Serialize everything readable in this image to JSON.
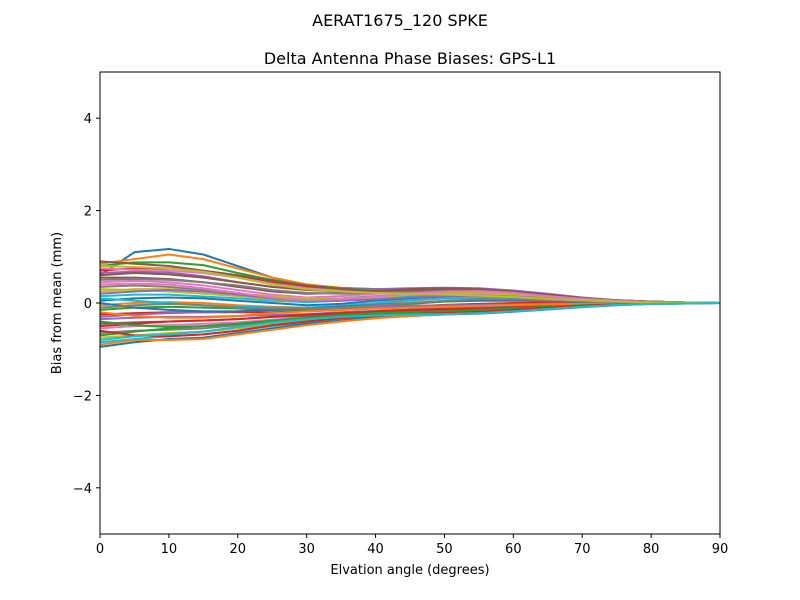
{
  "chart_data": {
    "type": "line",
    "suptitle": "AERAT1675_120   SPKE",
    "title": "Delta Antenna Phase Biases: GPS-L1",
    "xlabel": "Elvation angle (degrees)",
    "ylabel": "Bias from mean (mm)",
    "xlim": [
      0,
      90
    ],
    "ylim": [
      -5,
      5
    ],
    "xticks": [
      0,
      10,
      20,
      30,
      40,
      50,
      60,
      70,
      80,
      90
    ],
    "yticks": [
      -4,
      -2,
      0,
      2,
      4
    ],
    "ytick_labels": [
      "−4",
      "−2",
      "0",
      "2",
      "4"
    ],
    "grid": false,
    "legend": "none",
    "x": [
      0,
      5,
      10,
      15,
      20,
      25,
      30,
      35,
      40,
      45,
      50,
      55,
      60,
      65,
      70,
      75,
      80,
      85,
      90
    ],
    "colors": [
      "#1f77b4",
      "#ff7f0e",
      "#2ca02c",
      "#d62728",
      "#9467bd",
      "#8c564b",
      "#e377c2",
      "#7f7f7f",
      "#bcbd22",
      "#17becf"
    ],
    "series": [
      {
        "values": [
          0.6,
          1.1,
          1.17,
          1.05,
          0.8,
          0.55,
          0.4,
          0.32,
          0.3,
          0.28,
          0.25,
          0.22,
          0.2,
          0.15,
          0.1,
          0.06,
          0.03,
          0.01,
          0.0
        ]
      },
      {
        "values": [
          0.85,
          0.95,
          1.05,
          0.95,
          0.75,
          0.55,
          0.4,
          0.33,
          0.3,
          0.27,
          0.25,
          0.23,
          0.2,
          0.15,
          0.1,
          0.06,
          0.03,
          0.01,
          0.0
        ]
      },
      {
        "values": [
          0.8,
          0.88,
          0.88,
          0.82,
          0.65,
          0.5,
          0.38,
          0.32,
          0.3,
          0.28,
          0.26,
          0.24,
          0.2,
          0.15,
          0.1,
          0.06,
          0.03,
          0.01,
          0.0
        ]
      },
      {
        "values": [
          0.7,
          0.75,
          0.75,
          0.7,
          0.58,
          0.45,
          0.35,
          0.3,
          0.28,
          0.27,
          0.25,
          0.22,
          0.19,
          0.14,
          0.09,
          0.05,
          0.03,
          0.01,
          0.0
        ]
      },
      {
        "values": [
          0.65,
          0.68,
          0.66,
          0.58,
          0.45,
          0.35,
          0.3,
          0.28,
          0.3,
          0.32,
          0.33,
          0.32,
          0.27,
          0.2,
          0.12,
          0.06,
          0.03,
          0.01,
          0.0
        ]
      },
      {
        "values": [
          0.55,
          0.55,
          0.52,
          0.45,
          0.35,
          0.25,
          0.2,
          0.22,
          0.26,
          0.3,
          0.32,
          0.3,
          0.25,
          0.18,
          0.11,
          0.06,
          0.03,
          0.01,
          0.0
        ]
      },
      {
        "values": [
          0.45,
          0.48,
          0.45,
          0.38,
          0.28,
          0.18,
          0.12,
          0.15,
          0.2,
          0.25,
          0.28,
          0.27,
          0.22,
          0.16,
          0.1,
          0.05,
          0.02,
          0.01,
          0.0
        ]
      },
      {
        "values": [
          0.35,
          0.38,
          0.35,
          0.28,
          0.2,
          0.12,
          0.08,
          0.1,
          0.15,
          0.2,
          0.24,
          0.24,
          0.2,
          0.14,
          0.09,
          0.05,
          0.02,
          0.01,
          0.0
        ]
      },
      {
        "values": [
          0.25,
          0.3,
          0.3,
          0.25,
          0.2,
          0.15,
          0.1,
          0.1,
          0.12,
          0.15,
          0.18,
          0.18,
          0.15,
          0.11,
          0.07,
          0.04,
          0.02,
          0.01,
          0.0
        ]
      },
      {
        "values": [
          0.15,
          0.18,
          0.18,
          0.14,
          0.1,
          0.05,
          0.02,
          0.05,
          0.1,
          0.15,
          0.18,
          0.18,
          0.15,
          0.1,
          0.06,
          0.03,
          0.02,
          0.01,
          0.0
        ]
      },
      {
        "values": [
          0.05,
          0.1,
          0.12,
          0.1,
          0.05,
          0.0,
          -0.05,
          -0.02,
          0.05,
          0.1,
          0.14,
          0.15,
          0.12,
          0.09,
          0.06,
          0.03,
          0.01,
          0.0,
          0.0
        ]
      },
      {
        "values": [
          -0.05,
          0.0,
          0.02,
          0.0,
          -0.05,
          -0.08,
          -0.1,
          -0.08,
          -0.02,
          0.05,
          0.1,
          0.12,
          0.1,
          0.07,
          0.04,
          0.02,
          0.01,
          0.0,
          0.0
        ]
      },
      {
        "values": [
          -0.15,
          -0.1,
          -0.08,
          -0.1,
          -0.12,
          -0.15,
          -0.15,
          -0.12,
          -0.08,
          -0.02,
          0.03,
          0.05,
          0.05,
          0.04,
          0.02,
          0.01,
          0.0,
          0.0,
          0.0
        ]
      },
      {
        "values": [
          -0.25,
          -0.22,
          -0.2,
          -0.2,
          -0.2,
          -0.2,
          -0.18,
          -0.15,
          -0.12,
          -0.08,
          -0.04,
          -0.02,
          0.0,
          0.0,
          0.0,
          0.0,
          0.0,
          0.0,
          0.0
        ]
      },
      {
        "values": [
          -0.35,
          -0.32,
          -0.3,
          -0.3,
          -0.28,
          -0.26,
          -0.24,
          -0.2,
          -0.17,
          -0.14,
          -0.1,
          -0.08,
          -0.05,
          -0.03,
          -0.02,
          -0.01,
          0.0,
          0.0,
          0.0
        ]
      },
      {
        "values": [
          -0.45,
          -0.42,
          -0.4,
          -0.38,
          -0.35,
          -0.3,
          -0.28,
          -0.25,
          -0.22,
          -0.18,
          -0.15,
          -0.12,
          -0.09,
          -0.06,
          -0.04,
          -0.02,
          -0.01,
          0.0,
          0.0
        ]
      },
      {
        "values": [
          -0.55,
          -0.5,
          -0.48,
          -0.45,
          -0.42,
          -0.36,
          -0.32,
          -0.28,
          -0.25,
          -0.22,
          -0.2,
          -0.17,
          -0.13,
          -0.09,
          -0.05,
          -0.03,
          -0.01,
          0.0,
          0.0
        ]
      },
      {
        "values": [
          -0.65,
          -0.6,
          -0.58,
          -0.55,
          -0.48,
          -0.4,
          -0.35,
          -0.3,
          -0.26,
          -0.24,
          -0.22,
          -0.2,
          -0.16,
          -0.11,
          -0.07,
          -0.04,
          -0.02,
          -0.01,
          0.0
        ]
      },
      {
        "values": [
          -0.75,
          -0.7,
          -0.65,
          -0.62,
          -0.55,
          -0.45,
          -0.38,
          -0.32,
          -0.28,
          -0.25,
          -0.23,
          -0.21,
          -0.17,
          -0.12,
          -0.08,
          -0.04,
          -0.02,
          -0.01,
          0.0
        ]
      },
      {
        "values": [
          -0.85,
          -0.78,
          -0.72,
          -0.68,
          -0.6,
          -0.5,
          -0.42,
          -0.34,
          -0.3,
          -0.26,
          -0.24,
          -0.22,
          -0.18,
          -0.13,
          -0.08,
          -0.04,
          -0.02,
          -0.01,
          0.0
        ]
      },
      {
        "values": [
          -0.95,
          -0.85,
          -0.78,
          -0.75,
          -0.65,
          -0.55,
          -0.45,
          -0.38,
          -0.32,
          -0.28,
          -0.25,
          -0.23,
          -0.19,
          -0.14,
          -0.09,
          -0.05,
          -0.02,
          -0.01,
          0.0
        ]
      },
      {
        "values": [
          -0.9,
          -0.8,
          -0.8,
          -0.78,
          -0.68,
          -0.58,
          -0.48,
          -0.4,
          -0.33,
          -0.28,
          -0.25,
          -0.22,
          -0.18,
          -0.13,
          -0.08,
          -0.04,
          -0.02,
          -0.01,
          0.0
        ]
      },
      {
        "values": [
          -0.7,
          -0.62,
          -0.55,
          -0.5,
          -0.45,
          -0.4,
          -0.35,
          -0.3,
          -0.25,
          -0.22,
          -0.2,
          -0.18,
          -0.14,
          -0.1,
          -0.06,
          -0.03,
          -0.01,
          0.0,
          0.0
        ]
      },
      {
        "values": [
          -0.5,
          -0.45,
          -0.4,
          -0.38,
          -0.35,
          -0.3,
          -0.25,
          -0.22,
          -0.18,
          -0.15,
          -0.13,
          -0.12,
          -0.1,
          -0.07,
          -0.04,
          -0.02,
          -0.01,
          0.0,
          0.0
        ]
      },
      {
        "values": [
          -0.3,
          -0.25,
          -0.22,
          -0.2,
          -0.18,
          -0.15,
          -0.12,
          -0.1,
          -0.08,
          -0.06,
          -0.05,
          -0.04,
          -0.03,
          -0.02,
          -0.01,
          0.0,
          0.0,
          0.0,
          0.0
        ]
      },
      {
        "values": [
          0.9,
          0.85,
          0.8,
          0.7,
          0.6,
          0.48,
          0.38,
          0.3,
          0.25,
          0.22,
          0.2,
          0.18,
          0.15,
          0.11,
          0.07,
          0.04,
          0.02,
          0.01,
          0.0
        ]
      },
      {
        "values": [
          0.75,
          0.72,
          0.7,
          0.65,
          0.55,
          0.42,
          0.32,
          0.26,
          0.24,
          0.22,
          0.2,
          0.18,
          0.15,
          0.11,
          0.07,
          0.04,
          0.02,
          0.01,
          0.0
        ]
      },
      {
        "values": [
          0.5,
          0.52,
          0.5,
          0.45,
          0.38,
          0.28,
          0.22,
          0.2,
          0.22,
          0.25,
          0.27,
          0.26,
          0.22,
          0.16,
          0.1,
          0.05,
          0.02,
          0.01,
          0.0
        ]
      },
      {
        "values": [
          0.3,
          0.28,
          0.25,
          0.2,
          0.15,
          0.08,
          0.05,
          0.08,
          0.12,
          0.18,
          0.22,
          0.22,
          0.18,
          0.13,
          0.08,
          0.04,
          0.02,
          0.01,
          0.0
        ]
      },
      {
        "values": [
          0.1,
          0.05,
          0.0,
          -0.05,
          -0.08,
          -0.1,
          -0.1,
          -0.06,
          0.0,
          0.06,
          0.1,
          0.12,
          0.11,
          0.08,
          0.05,
          0.03,
          0.01,
          0.0,
          0.0
        ]
      },
      {
        "values": [
          0.0,
          -0.1,
          -0.15,
          -0.18,
          -0.18,
          -0.15,
          -0.12,
          -0.08,
          -0.04,
          0.0,
          0.04,
          0.06,
          0.06,
          0.05,
          0.03,
          0.02,
          0.01,
          0.0,
          0.0
        ]
      },
      {
        "values": [
          -0.2,
          -0.28,
          -0.32,
          -0.32,
          -0.28,
          -0.22,
          -0.18,
          -0.15,
          -0.12,
          -0.1,
          -0.08,
          -0.06,
          -0.04,
          -0.03,
          -0.02,
          -0.01,
          0.0,
          0.0,
          0.0
        ]
      },
      {
        "values": [
          -0.4,
          -0.48,
          -0.52,
          -0.5,
          -0.45,
          -0.38,
          -0.32,
          -0.26,
          -0.22,
          -0.2,
          -0.18,
          -0.15,
          -0.12,
          -0.08,
          -0.05,
          -0.03,
          -0.01,
          0.0,
          0.0
        ]
      },
      {
        "values": [
          -0.6,
          -0.7,
          -0.72,
          -0.68,
          -0.6,
          -0.48,
          -0.4,
          -0.33,
          -0.28,
          -0.24,
          -0.22,
          -0.19,
          -0.15,
          -0.1,
          -0.06,
          -0.03,
          -0.01,
          0.0,
          0.0
        ]
      },
      {
        "values": [
          0.2,
          0.25,
          0.28,
          0.25,
          0.18,
          0.1,
          0.05,
          0.05,
          0.08,
          0.12,
          0.15,
          0.16,
          0.14,
          0.1,
          0.06,
          0.03,
          0.01,
          0.0,
          0.0
        ]
      },
      {
        "values": [
          0.6,
          0.65,
          0.62,
          0.55,
          0.45,
          0.35,
          0.28,
          0.25,
          0.26,
          0.28,
          0.3,
          0.29,
          0.24,
          0.17,
          0.1,
          0.05,
          0.02,
          0.01,
          0.0
        ]
      },
      {
        "values": [
          0.4,
          0.42,
          0.4,
          0.32,
          0.22,
          0.12,
          0.06,
          0.08,
          0.14,
          0.2,
          0.25,
          0.26,
          0.22,
          0.15,
          0.09,
          0.05,
          0.02,
          0.01,
          0.0
        ]
      },
      {
        "values": [
          -0.1,
          -0.05,
          -0.02,
          -0.05,
          -0.1,
          -0.12,
          -0.12,
          -0.1,
          -0.05,
          0.0,
          0.05,
          0.08,
          0.08,
          0.06,
          0.04,
          0.02,
          0.01,
          0.0,
          0.0
        ]
      },
      {
        "values": [
          0.8,
          0.78,
          0.75,
          0.68,
          0.55,
          0.4,
          0.3,
          0.25,
          0.22,
          0.2,
          0.18,
          0.16,
          0.13,
          0.09,
          0.06,
          0.03,
          0.01,
          0.0,
          0.0
        ]
      },
      {
        "values": [
          -0.8,
          -0.72,
          -0.68,
          -0.62,
          -0.52,
          -0.42,
          -0.35,
          -0.3,
          -0.27,
          -0.25,
          -0.24,
          -0.22,
          -0.18,
          -0.13,
          -0.08,
          -0.04,
          -0.02,
          -0.01,
          0.0
        ]
      }
    ]
  }
}
